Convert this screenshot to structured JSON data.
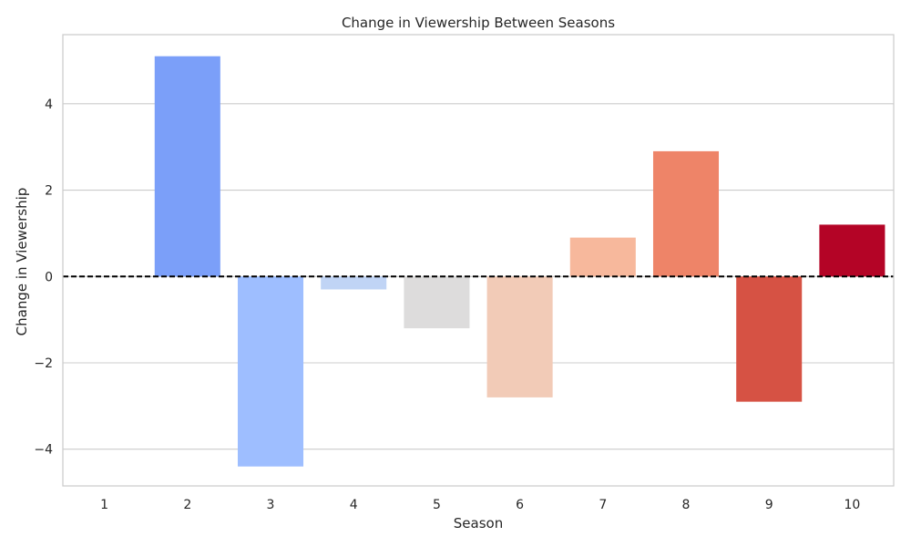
{
  "chart_data": {
    "type": "bar",
    "title": "Change in Viewership Between Seasons",
    "xlabel": "Season",
    "ylabel": "Change in Viewership",
    "categories": [
      "1",
      "2",
      "3",
      "4",
      "5",
      "6",
      "7",
      "8",
      "9",
      "10"
    ],
    "values": [
      0,
      5.1,
      -4.4,
      -0.3,
      -1.2,
      -2.8,
      0.9,
      2.9,
      -2.9,
      1.2
    ],
    "bar_colors": [
      "#3b4cc0",
      "#7b9ff9",
      "#9ebeff",
      "#c0d4f5",
      "#dddcdc",
      "#f2cbb7",
      "#f7b89c",
      "#ee8468",
      "#d65244",
      "#b40426"
    ],
    "ylim": [
      -4.85,
      5.6
    ],
    "yticks": [
      -4,
      -2,
      0,
      2,
      4
    ],
    "ytick_labels": [
      "−4",
      "−2",
      "0",
      "2",
      "4"
    ],
    "reference_line": {
      "y": 0,
      "style": "dashed",
      "color": "#000000"
    },
    "grid": "horizontal",
    "legend": "none"
  }
}
